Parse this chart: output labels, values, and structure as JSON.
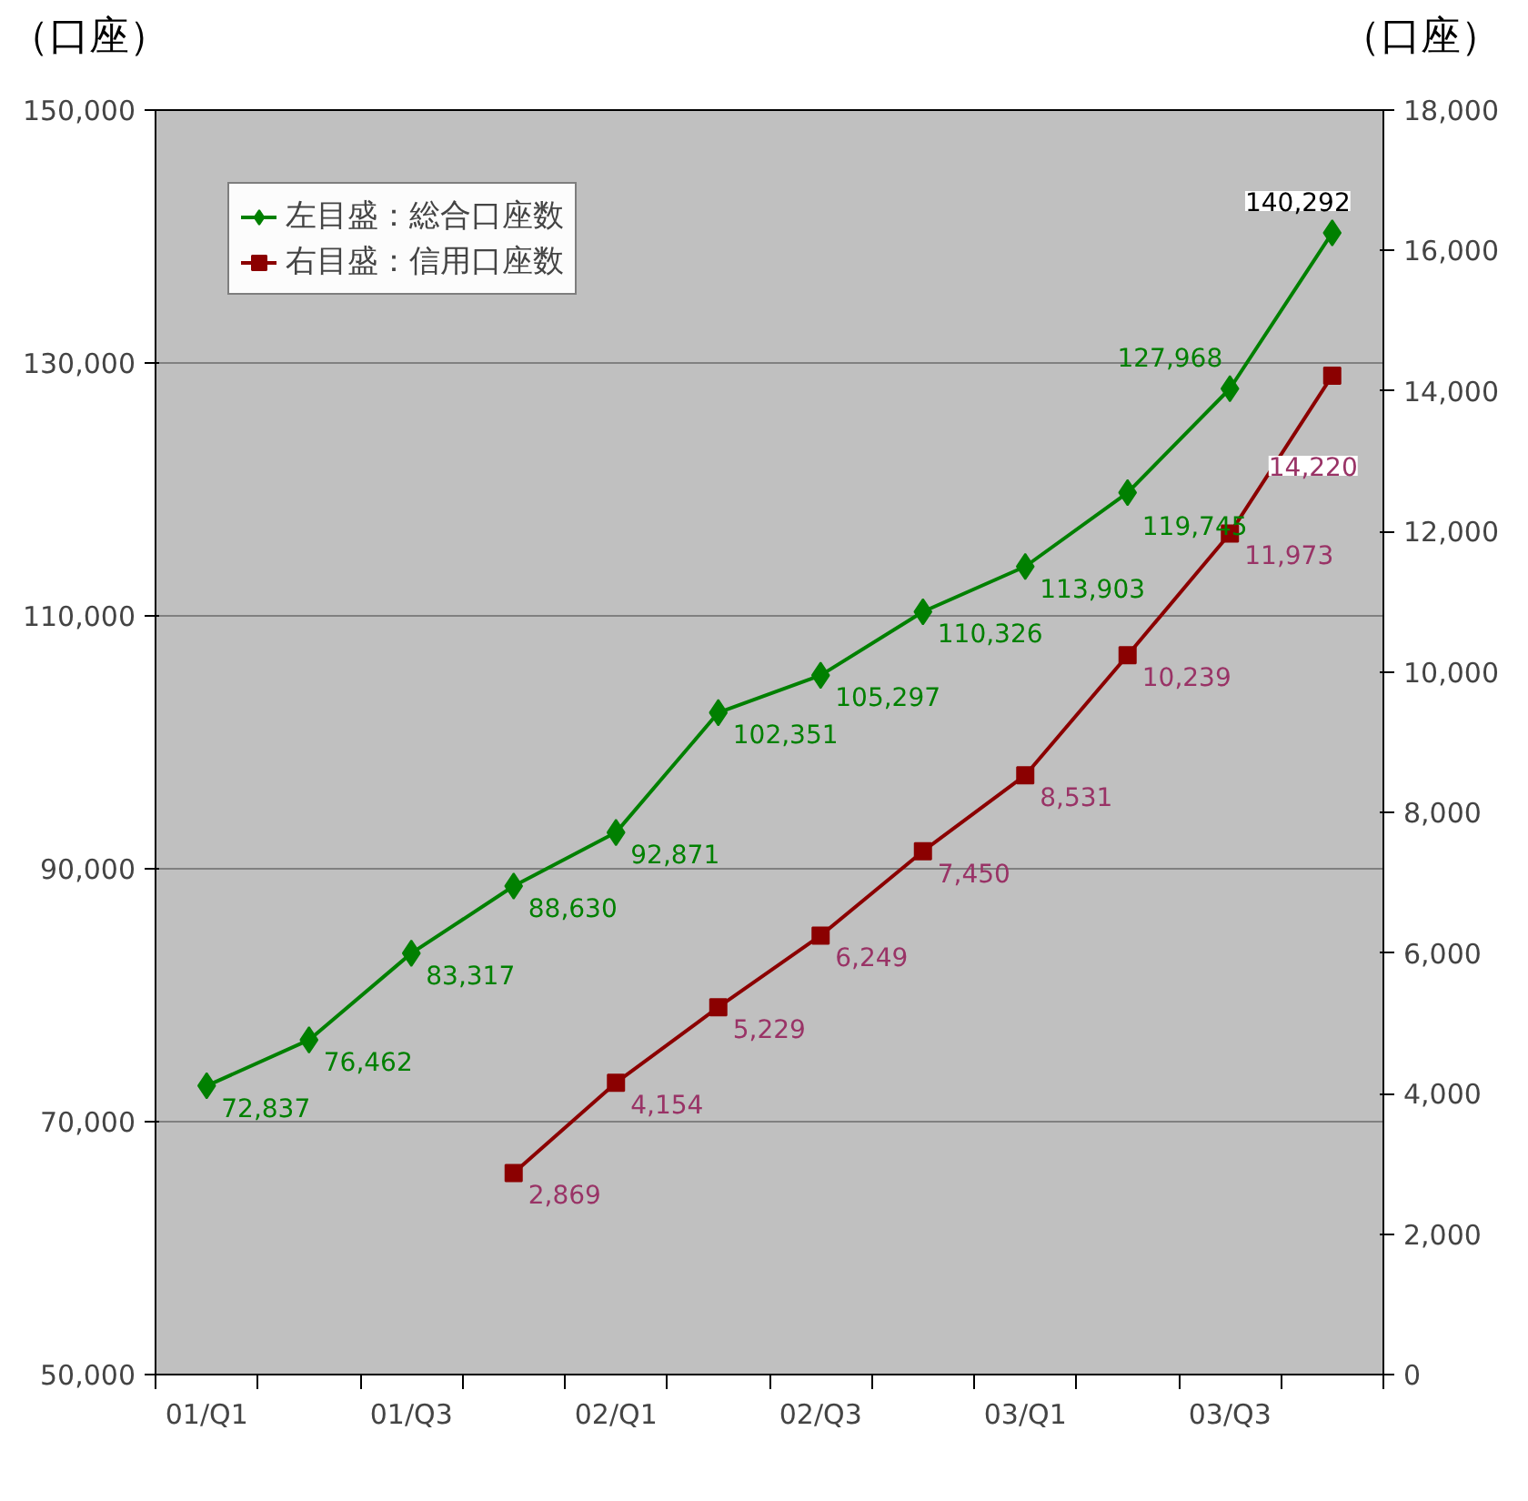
{
  "chart_data": {
    "type": "line",
    "ylabel": "（口座）",
    "y2label": "（口座）",
    "categories": [
      "01/Q1",
      null,
      "01/Q3",
      null,
      "02/Q1",
      null,
      "02/Q3",
      null,
      "03/Q1",
      null,
      "03/Q3",
      null
    ],
    "series": [
      {
        "name": "左目盛：総合口座数",
        "color": "#008000",
        "marker": "diamond",
        "values": [
          72837,
          76462,
          83317,
          88630,
          92871,
          102351,
          105297,
          110326,
          113903,
          119745,
          127968,
          140292
        ],
        "value_labels": [
          "72,837",
          "76,462",
          "83,317",
          "88,630",
          "92,871",
          "102,351",
          "105,297",
          "110,326",
          "113,903",
          "119,745",
          "127,968",
          "140,292"
        ]
      },
      {
        "name": "右目盛：信用口座数",
        "color": "#8b0000",
        "marker": "square",
        "axis": "y2",
        "values": [
          null,
          null,
          null,
          2869,
          4154,
          5229,
          6249,
          7450,
          8531,
          10239,
          11973,
          14220
        ],
        "value_labels": [
          null,
          null,
          null,
          "2,869",
          "4,154",
          "5,229",
          "6,249",
          "7,450",
          "8,531",
          "10,239",
          "11,973",
          "14,220"
        ]
      }
    ],
    "ylim": [
      50000,
      150000
    ],
    "yticks": [
      {
        "value": 50000,
        "label": "50,000"
      },
      {
        "value": 70000,
        "label": "70,000"
      },
      {
        "value": 90000,
        "label": "90,000"
      },
      {
        "value": 110000,
        "label": "110,000"
      },
      {
        "value": 130000,
        "label": "130,000"
      },
      {
        "value": 150000,
        "label": "150,000"
      }
    ],
    "y2lim": [
      0,
      18000
    ],
    "y2ticks": [
      0,
      {
        "value": 2000,
        "label": "2,000"
      },
      {
        "value": 4000,
        "label": "4,000"
      },
      {
        "value": 6000,
        "label": "6,000"
      },
      {
        "value": 8000,
        "label": "8,000"
      },
      {
        "value": 10000,
        "label": "10,000"
      },
      {
        "value": 12000,
        "label": "12,000"
      },
      {
        "value": 14000,
        "label": "14,000"
      },
      {
        "value": 16000,
        "label": "16,000"
      },
      {
        "value": 18000,
        "label": "18,000"
      }
    ],
    "grid": "y",
    "legend": "top left"
  }
}
